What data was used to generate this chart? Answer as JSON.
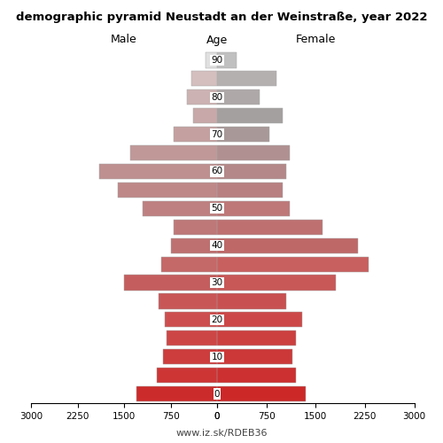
{
  "title": "demographic pyramid Neustadt an der Weinstraße, year 2022",
  "n_groups": 19,
  "age_tick_indices": [
    18,
    16,
    14,
    12,
    10,
    8,
    6,
    4,
    2,
    0
  ],
  "age_tick_labels": [
    "90",
    "80",
    "70",
    "60",
    "50",
    "40",
    "30",
    "20",
    "10",
    "0"
  ],
  "male_values": [
    1300,
    970,
    870,
    820,
    850,
    950,
    1500,
    900,
    750,
    700,
    1200,
    1600,
    1900,
    1400,
    700,
    380,
    480,
    420,
    180
  ],
  "female_values": [
    1350,
    1200,
    1150,
    1200,
    1300,
    1050,
    1800,
    2300,
    2150,
    1600,
    1100,
    1000,
    1050,
    1100,
    800,
    1000,
    650,
    900,
    300
  ],
  "male_colors": [
    "#cc2b2b",
    "#cd3535",
    "#cd3d3d",
    "#cd4646",
    "#cd4e4e",
    "#c85656",
    "#c45e5e",
    "#c46868",
    "#be7070",
    "#be7878",
    "#be8080",
    "#be8888",
    "#be9090",
    "#c09898",
    "#c4a0a0",
    "#c8a8a8",
    "#ccb2b2",
    "#d4bebe",
    "#e0e0e0"
  ],
  "female_colors": [
    "#cc2828",
    "#cc3030",
    "#cc3838",
    "#cc4040",
    "#cc4848",
    "#c85050",
    "#c85858",
    "#c86060",
    "#be6868",
    "#be7070",
    "#be7878",
    "#b88080",
    "#b48888",
    "#b09090",
    "#a89898",
    "#a4a0a0",
    "#aea8a8",
    "#b4b0b0",
    "#c0c0c0"
  ],
  "xlim": 3000,
  "xticks": [
    0,
    750,
    1500,
    2250,
    3000
  ],
  "bar_height": 0.82,
  "header_male": "Male",
  "header_female": "Female",
  "header_age": "Age",
  "footer": "www.iz.sk/RDEB36"
}
